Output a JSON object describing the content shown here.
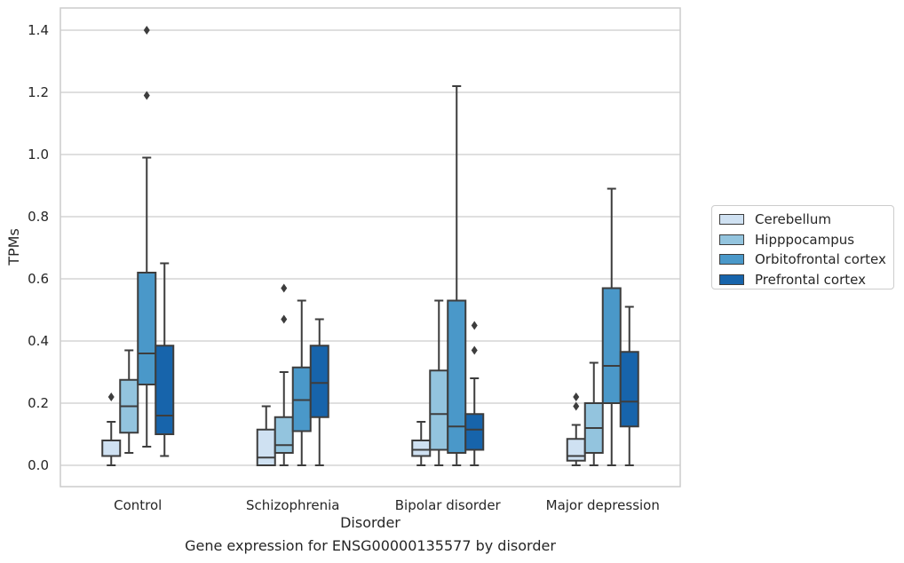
{
  "chart_data": {
    "type": "boxplot",
    "title": "Gene expression for ENSG00000135577 by disorder",
    "xlabel": "Disorder",
    "ylabel": "TPMs",
    "ylim": [
      -0.07,
      1.47
    ],
    "yticks": [
      "0.0",
      "0.2",
      "0.4",
      "0.6",
      "0.8",
      "1.0",
      "1.2",
      "1.4"
    ],
    "grid": true,
    "legend_position": "right, outside plot",
    "categories": [
      "Control",
      "Schizophrenia",
      "Bipolar disorder",
      "Major depression"
    ],
    "series": [
      {
        "name": "Cerebellum",
        "color": "#cfe1f2",
        "boxes": [
          {
            "whisker_low": 0.0,
            "q1": 0.03,
            "median": 0.03,
            "q3": 0.08,
            "whisker_high": 0.14,
            "outliers": [
              0.22
            ]
          },
          {
            "whisker_low": 0.0,
            "q1": 0.0,
            "median": 0.025,
            "q3": 0.115,
            "whisker_high": 0.19,
            "outliers": []
          },
          {
            "whisker_low": 0.0,
            "q1": 0.03,
            "median": 0.05,
            "q3": 0.08,
            "whisker_high": 0.14,
            "outliers": []
          },
          {
            "whisker_low": 0.0,
            "q1": 0.015,
            "median": 0.03,
            "q3": 0.085,
            "whisker_high": 0.13,
            "outliers": [
              0.19,
              0.22
            ]
          }
        ]
      },
      {
        "name": "Hipppocampus",
        "color": "#93c4de",
        "boxes": [
          {
            "whisker_low": 0.04,
            "q1": 0.105,
            "median": 0.19,
            "q3": 0.275,
            "whisker_high": 0.37,
            "outliers": []
          },
          {
            "whisker_low": 0.0,
            "q1": 0.04,
            "median": 0.065,
            "q3": 0.155,
            "whisker_high": 0.3,
            "outliers": [
              0.47,
              0.57
            ]
          },
          {
            "whisker_low": 0.0,
            "q1": 0.05,
            "median": 0.165,
            "q3": 0.305,
            "whisker_high": 0.53,
            "outliers": []
          },
          {
            "whisker_low": 0.0,
            "q1": 0.04,
            "median": 0.12,
            "q3": 0.2,
            "whisker_high": 0.33,
            "outliers": []
          }
        ]
      },
      {
        "name": "Orbitofrontal cortex",
        "color": "#4a98c9",
        "boxes": [
          {
            "whisker_low": 0.06,
            "q1": 0.26,
            "median": 0.36,
            "q3": 0.62,
            "whisker_high": 0.99,
            "outliers": [
              1.19,
              1.4
            ]
          },
          {
            "whisker_low": 0.0,
            "q1": 0.11,
            "median": 0.21,
            "q3": 0.315,
            "whisker_high": 0.53,
            "outliers": []
          },
          {
            "whisker_low": 0.0,
            "q1": 0.04,
            "median": 0.125,
            "q3": 0.53,
            "whisker_high": 1.22,
            "outliers": []
          },
          {
            "whisker_low": 0.0,
            "q1": 0.2,
            "median": 0.32,
            "q3": 0.57,
            "whisker_high": 0.89,
            "outliers": []
          }
        ]
      },
      {
        "name": "Prefrontal cortex",
        "color": "#1764ab",
        "boxes": [
          {
            "whisker_low": 0.03,
            "q1": 0.1,
            "median": 0.16,
            "q3": 0.385,
            "whisker_high": 0.65,
            "outliers": []
          },
          {
            "whisker_low": 0.0,
            "q1": 0.155,
            "median": 0.265,
            "q3": 0.385,
            "whisker_high": 0.47,
            "outliers": []
          },
          {
            "whisker_low": 0.0,
            "q1": 0.05,
            "median": 0.115,
            "q3": 0.165,
            "whisker_high": 0.28,
            "outliers": [
              0.37,
              0.45
            ]
          },
          {
            "whisker_low": 0.0,
            "q1": 0.125,
            "median": 0.205,
            "q3": 0.365,
            "whisker_high": 0.51,
            "outliers": []
          }
        ]
      }
    ]
  }
}
